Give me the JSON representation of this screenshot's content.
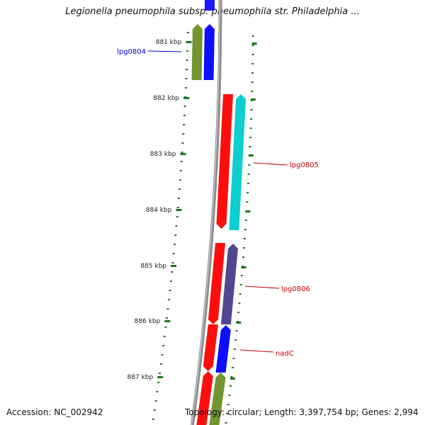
{
  "title": "Legionella pneumophila subsp. pneumophila str. Philadelphia ...",
  "footer": {
    "accession": "Accession: NC_002942",
    "summary": "Topology: circular; Length: 3,397,754 bp; Genes: 2,994"
  },
  "ticks": [
    {
      "label": "881 kbp"
    },
    {
      "label": "882 kbp"
    },
    {
      "label": "883 kbp"
    },
    {
      "label": "884 kbp"
    },
    {
      "label": "885 kbp"
    },
    {
      "label": "886 kbp"
    },
    {
      "label": "887 kbp"
    }
  ],
  "genes": [
    {
      "label": "lpg0804",
      "label_color": "#0000cc"
    },
    {
      "label": "lpg0805",
      "label_color": "#cc0000"
    },
    {
      "label": "lpg0806",
      "label_color": "#cc0000"
    },
    {
      "label": "nadC",
      "label_color": "#cc0000"
    }
  ],
  "colors": {
    "backbone": "#8c8c8c",
    "tick": "#1a7a1a",
    "forward_gene": "#0000ff",
    "reverse_gene": "#ff0000",
    "cyan_feature": "#00cccc",
    "olive_feature": "#6b8e23",
    "purple_feature": "#483d8b"
  }
}
